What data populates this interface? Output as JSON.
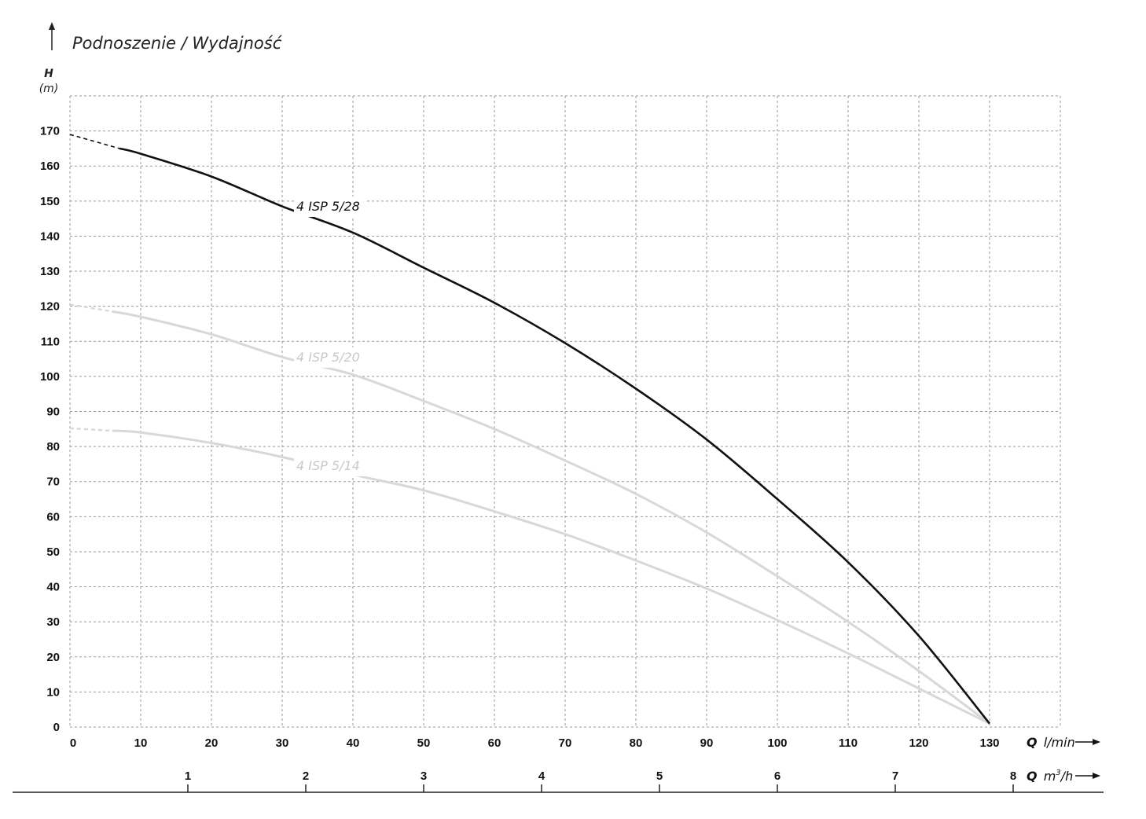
{
  "chart_data": {
    "type": "line",
    "title": "Podnoszenie / Wydajność",
    "y_axis": {
      "label": "H",
      "unit": "(m)",
      "ticks": [
        "0",
        "10",
        "20",
        "30",
        "40",
        "50",
        "60",
        "70",
        "80",
        "90",
        "100",
        "110",
        "120",
        "130",
        "140",
        "150",
        "160",
        "170"
      ],
      "range": [
        0,
        180
      ]
    },
    "x_axis": {
      "label": "Q",
      "unit": "l/min",
      "ticks": [
        "0",
        "10",
        "20",
        "30",
        "40",
        "50",
        "60",
        "70",
        "80",
        "90",
        "100",
        "110",
        "120",
        "130"
      ],
      "range": [
        0,
        140
      ]
    },
    "x_axis_secondary": {
      "label": "Q",
      "unit": "m",
      "unit_sup": "3",
      "unit_tail": "/h",
      "ticks": [
        {
          "label": "1",
          "value": 1
        },
        {
          "label": "2",
          "value": 2
        },
        {
          "label": "3",
          "value": 3
        },
        {
          "label": "4",
          "value": 4
        },
        {
          "label": "5",
          "value": 5
        },
        {
          "label": "6",
          "value": 6
        },
        {
          "label": "7",
          "value": 7
        },
        {
          "label": "8",
          "value": 8
        }
      ]
    },
    "grid": true,
    "series": [
      {
        "name": "4 ISP 5/28",
        "color": "#111111",
        "dashed_until": 7,
        "points": [
          [
            0,
            169
          ],
          [
            7,
            165
          ],
          [
            10,
            163.5
          ],
          [
            20,
            157
          ],
          [
            30,
            148.5
          ],
          [
            40,
            141
          ],
          [
            50,
            131
          ],
          [
            60,
            121
          ],
          [
            70,
            109.5
          ],
          [
            80,
            96.5
          ],
          [
            90,
            82
          ],
          [
            100,
            65
          ],
          [
            110,
            47
          ],
          [
            120,
            26
          ],
          [
            130,
            1
          ]
        ]
      },
      {
        "name": "4 ISP 5/20",
        "color": "#d8d8d8",
        "dashed_until": 6,
        "points": [
          [
            0,
            120.5
          ],
          [
            6,
            118.5
          ],
          [
            10,
            117
          ],
          [
            20,
            112
          ],
          [
            30,
            105.5
          ],
          [
            40,
            100.5
          ],
          [
            50,
            93
          ],
          [
            60,
            85
          ],
          [
            70,
            76
          ],
          [
            80,
            66.5
          ],
          [
            90,
            55.5
          ],
          [
            100,
            43
          ],
          [
            110,
            30
          ],
          [
            120,
            16
          ],
          [
            130,
            1
          ]
        ]
      },
      {
        "name": "4 ISP 5/14",
        "color": "#d8d8d8",
        "dashed_until": 6,
        "points": [
          [
            0,
            85.2
          ],
          [
            6,
            84.5
          ],
          [
            10,
            84
          ],
          [
            20,
            81
          ],
          [
            30,
            77
          ],
          [
            40,
            72
          ],
          [
            50,
            67.5
          ],
          [
            60,
            61.5
          ],
          [
            70,
            55
          ],
          [
            80,
            47.5
          ],
          [
            90,
            39.5
          ],
          [
            100,
            30.5
          ],
          [
            110,
            21
          ],
          [
            120,
            11
          ],
          [
            130,
            1
          ]
        ]
      }
    ]
  }
}
